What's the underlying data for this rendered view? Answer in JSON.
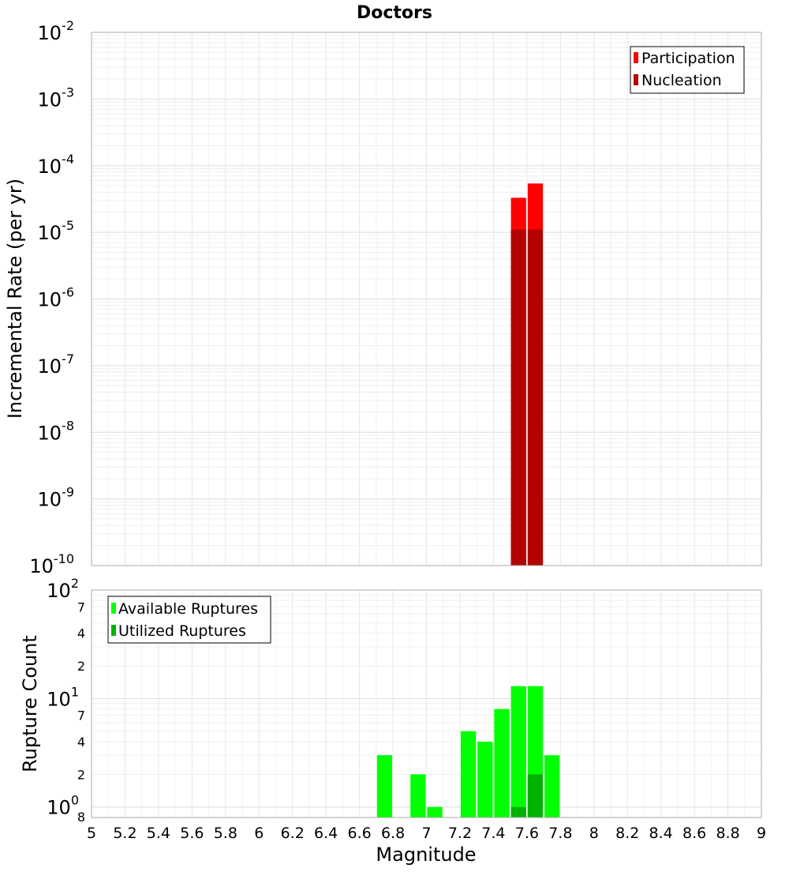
{
  "chart_data": [
    {
      "type": "bar",
      "title": "Doctors",
      "ylabel": "Incremental Rate (per yr)",
      "y_scale": "log",
      "ylim": [
        1e-10,
        0.01
      ],
      "xlim": [
        5,
        9
      ],
      "bin_width": 0.1,
      "y_ticks": [
        {
          "base": "10",
          "exp": "-2"
        },
        {
          "base": "10",
          "exp": "-3"
        },
        {
          "base": "10",
          "exp": "-4"
        },
        {
          "base": "10",
          "exp": "-5"
        },
        {
          "base": "10",
          "exp": "-6"
        },
        {
          "base": "10",
          "exp": "-7"
        },
        {
          "base": "10",
          "exp": "-8"
        },
        {
          "base": "10",
          "exp": "-9"
        },
        {
          "base": "10",
          "exp": "-10"
        }
      ],
      "legend_position": "top-right",
      "grid": true,
      "series": [
        {
          "name": "Participation",
          "color": "#ff0000",
          "x": [
            7.55,
            7.65
          ],
          "values": [
            3.3e-05,
            5.4e-05
          ]
        },
        {
          "name": "Nucleation",
          "color": "#b30000",
          "x": [
            7.55,
            7.65
          ],
          "values": [
            1.1e-05,
            1.1e-05
          ]
        }
      ]
    },
    {
      "type": "bar",
      "xlabel": "Magnitude",
      "ylabel": "Rupture Count",
      "y_scale": "log",
      "ylim": [
        0.8,
        100
      ],
      "xlim": [
        5,
        9
      ],
      "bin_width": 0.1,
      "x_ticks": [
        "5",
        "5.2",
        "5.4",
        "5.6",
        "5.8",
        "6",
        "6.2",
        "6.4",
        "6.6",
        "6.8",
        "7",
        "7.2",
        "7.4",
        "7.6",
        "7.8",
        "8",
        "8.2",
        "8.4",
        "8.6",
        "8.8",
        "9"
      ],
      "y_major_ticks": [
        {
          "base": "10",
          "exp": "2"
        },
        {
          "base": "10",
          "exp": "1"
        },
        {
          "base": "10",
          "exp": "0"
        }
      ],
      "y_minor_ticks": [
        "7",
        "4",
        "2",
        "7",
        "4",
        "2",
        "8"
      ],
      "legend_position": "top-left",
      "grid": true,
      "series": [
        {
          "name": "Available Ruptures",
          "color": "#00ff00",
          "x": [
            6.75,
            6.95,
            7.05,
            7.25,
            7.35,
            7.45,
            7.55,
            7.65,
            7.75
          ],
          "values": [
            3,
            2,
            1,
            5,
            4,
            8,
            13,
            13,
            3
          ]
        },
        {
          "name": "Utilized Ruptures",
          "color": "#00b300",
          "x": [
            7.55,
            7.65
          ],
          "values": [
            1,
            2
          ]
        }
      ]
    }
  ]
}
